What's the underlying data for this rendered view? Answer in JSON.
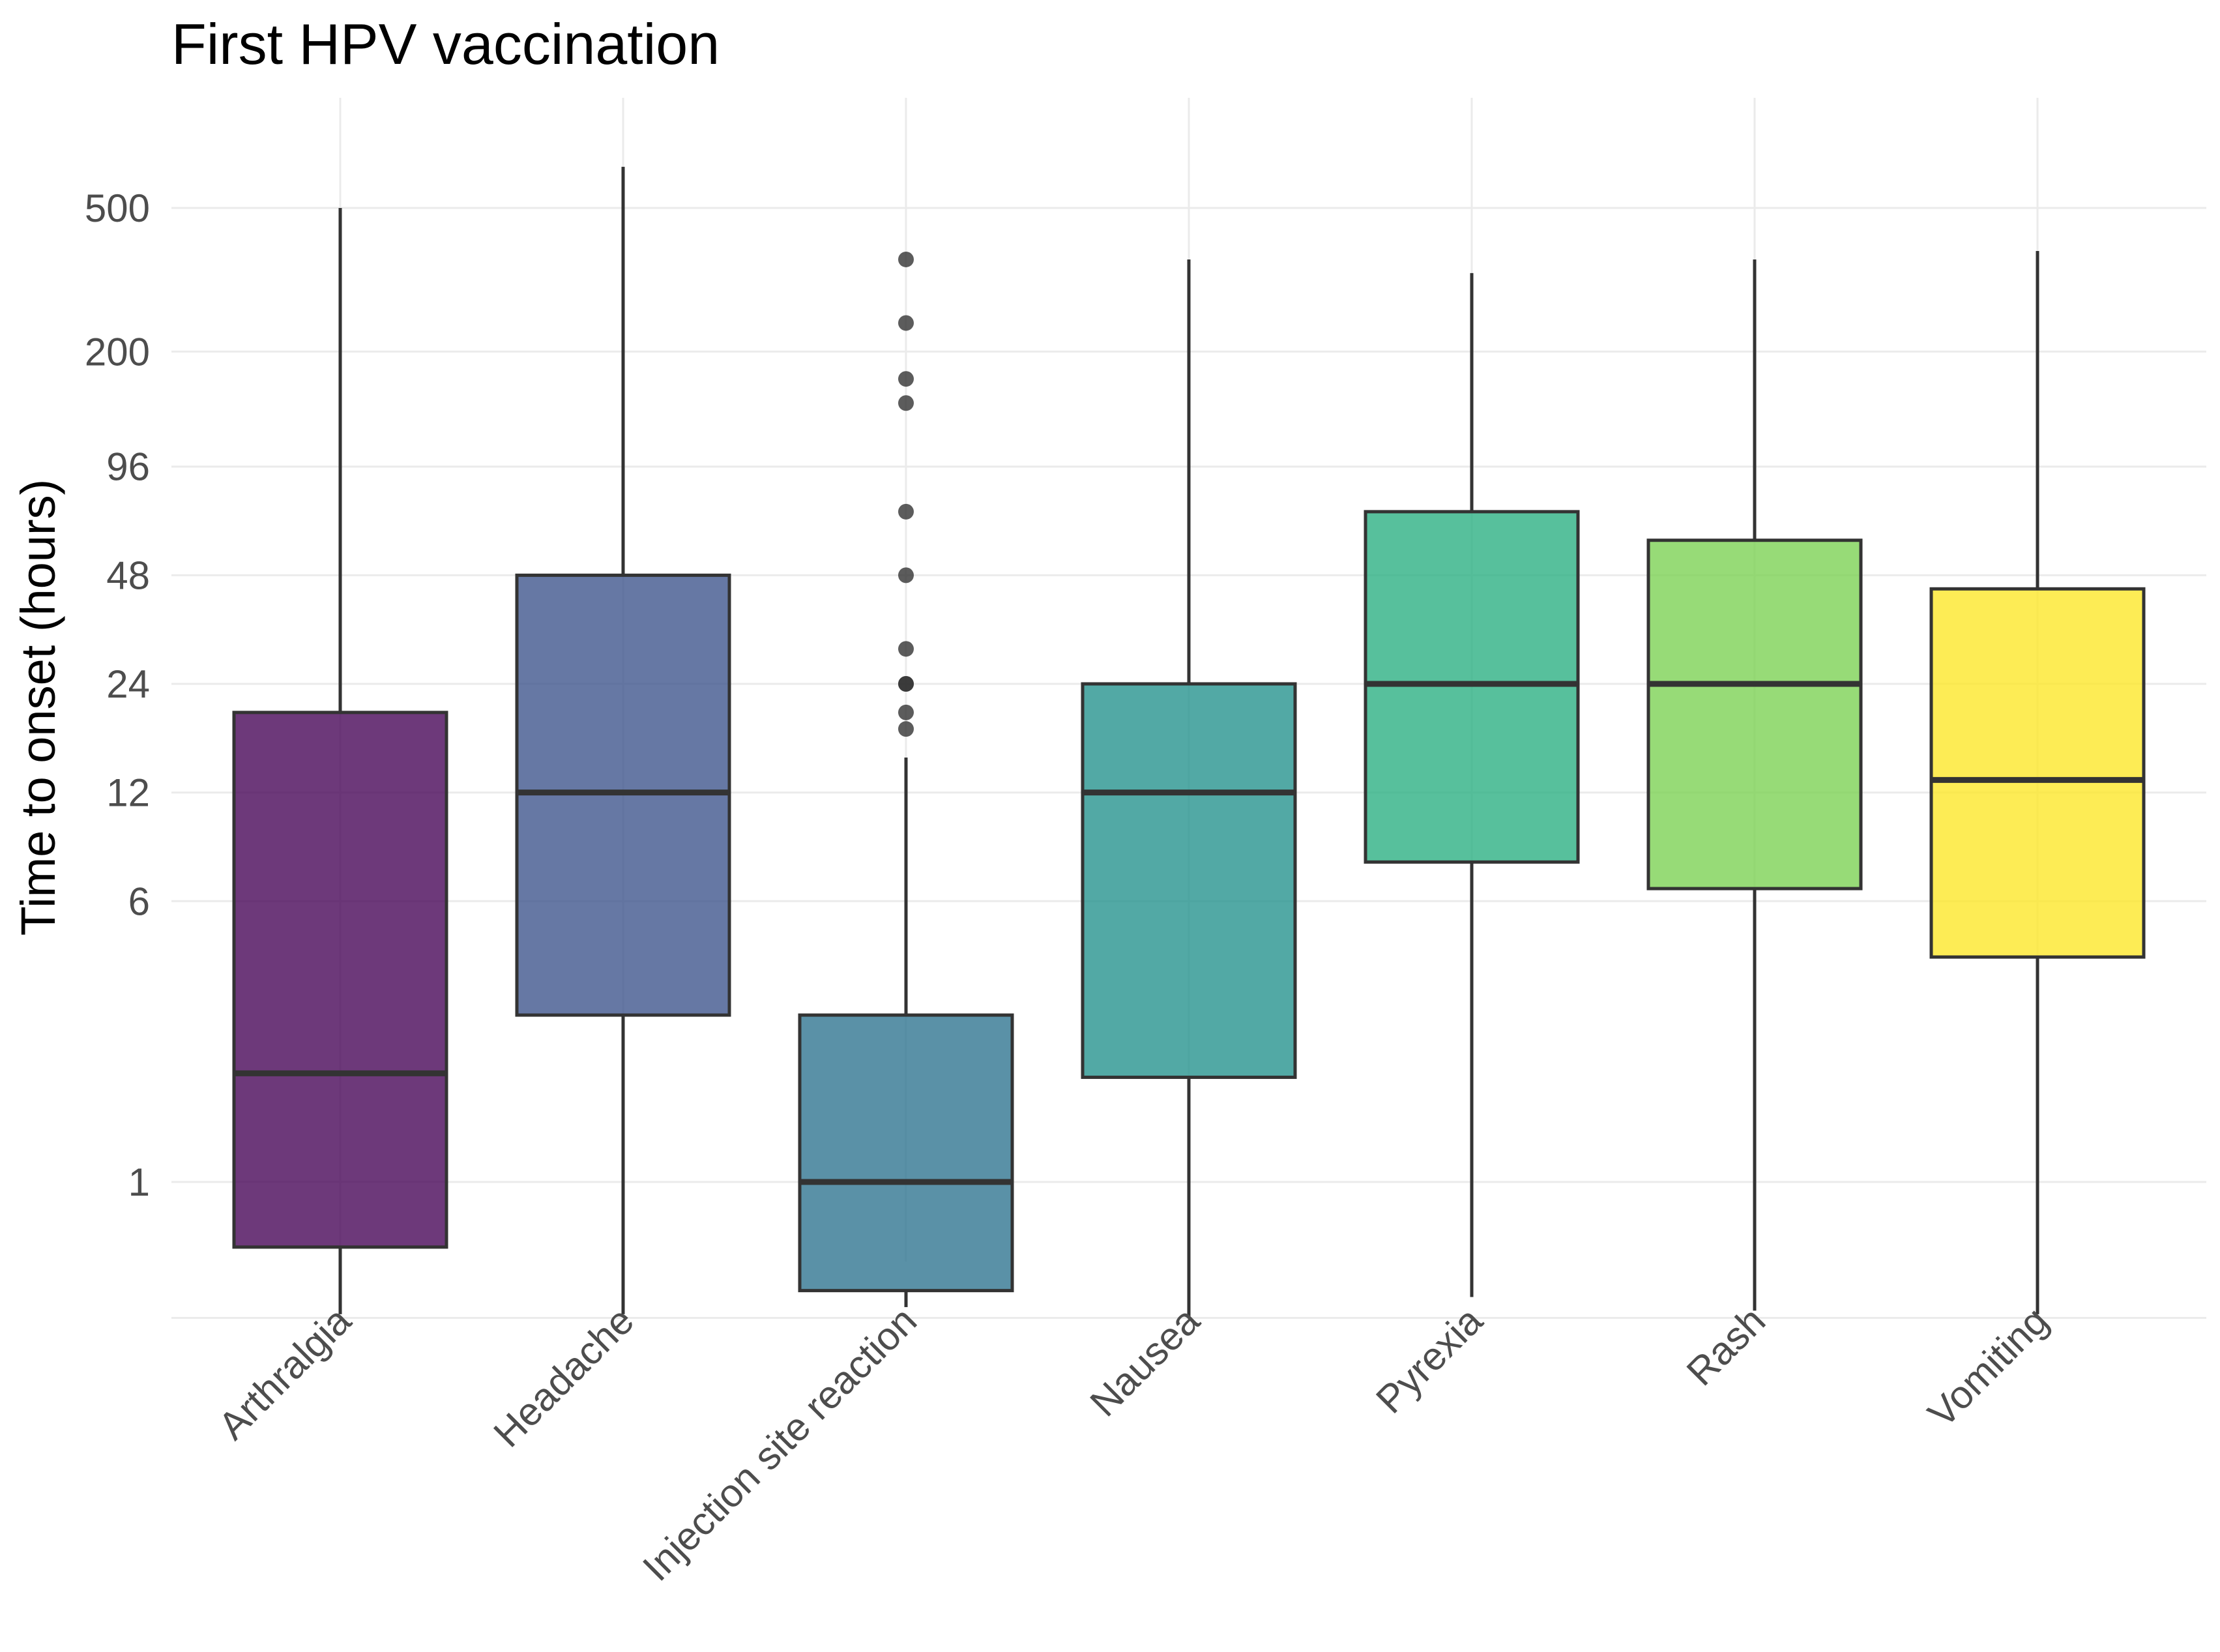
{
  "chart_data": {
    "type": "boxplot",
    "title": "First HPV vaccination",
    "xlabel": "",
    "ylabel": "Time to onset (hours)",
    "y_scale": "log",
    "ylim": [
      0.42,
      900
    ],
    "y_ticks": [
      1,
      6,
      12,
      24,
      48,
      96,
      200,
      500
    ],
    "grid": true,
    "legend": "none",
    "categories": [
      "Arthralgia",
      "Headache",
      "Injection site reaction",
      "Nausea",
      "Pyrexia",
      "Rash",
      "Vomiting"
    ],
    "series": [
      {
        "name": "Arthralgia",
        "color": "#440154",
        "whisker_low": 0.43,
        "q1": 0.66,
        "median": 2.0,
        "q3": 20,
        "whisker_high": 500,
        "outliers": []
      },
      {
        "name": "Headache",
        "color": "#3b528b",
        "whisker_low": 0.43,
        "q1": 2.9,
        "median": 12,
        "q3": 48,
        "whisker_high": 650,
        "outliers": []
      },
      {
        "name": "Injection site reaction",
        "color": "#2c728e",
        "whisker_low": 0.45,
        "q1": 0.5,
        "median": 1,
        "q3": 2.9,
        "whisker_high": 15,
        "outliers": [
          18,
          20,
          24,
          24,
          30,
          48,
          72,
          144,
          168,
          240,
          360
        ]
      },
      {
        "name": "Nausea",
        "color": "#21918c",
        "whisker_low": 0.42,
        "q1": 1.95,
        "median": 12,
        "q3": 24,
        "whisker_high": 360,
        "outliers": []
      },
      {
        "name": "Pyrexia",
        "color": "#28ae80",
        "whisker_low": 0.48,
        "q1": 7.7,
        "median": 24,
        "q3": 72,
        "whisker_high": 330,
        "outliers": []
      },
      {
        "name": "Rash",
        "color": "#7ad151",
        "whisker_low": 0.44,
        "q1": 6.5,
        "median": 24,
        "q3": 60,
        "whisker_high": 360,
        "outliers": []
      },
      {
        "name": "Vomiting",
        "color": "#fde725",
        "whisker_low": 0.43,
        "q1": 4.2,
        "median": 13,
        "q3": 44,
        "whisker_high": 380,
        "outliers": []
      }
    ]
  }
}
